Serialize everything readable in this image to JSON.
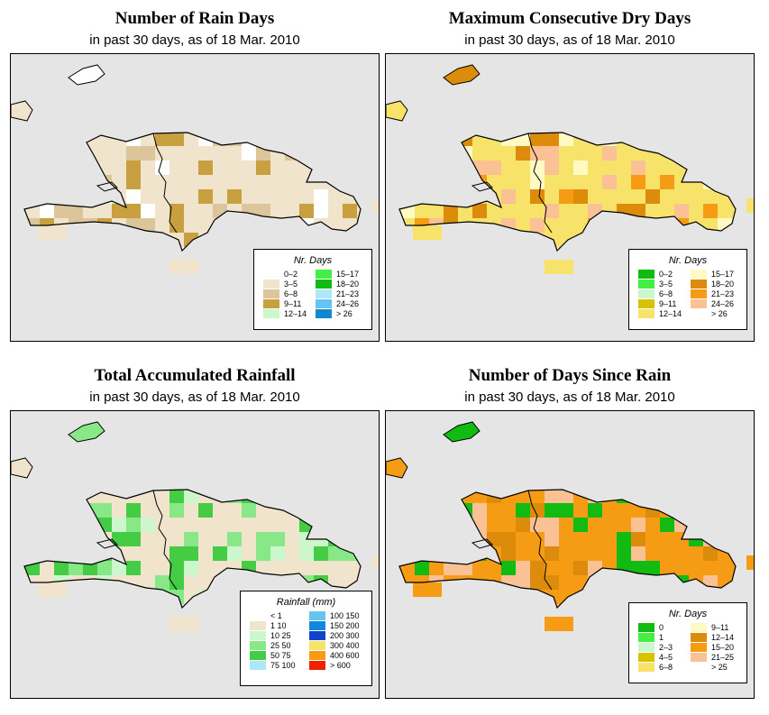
{
  "panels": [
    {
      "title": "Number of Rain Days",
      "subtitle": "in past 30 days, as of  18 Mar. 2010",
      "legend_title": "Nr. Days",
      "legend": [
        {
          "label": "0–2",
          "color": "#ffffff"
        },
        {
          "label": "3–5",
          "color": "#f1e4cc"
        },
        {
          "label": "6–8",
          "color": "#dcc59a"
        },
        {
          "label": "9–11",
          "color": "#c8a040"
        },
        {
          "label": "12–14",
          "color": "#ccf7cc"
        },
        {
          "label": "15–17",
          "color": "#44ee44"
        },
        {
          "label": "18–20",
          "color": "#11bb11"
        },
        {
          "label": "21–23",
          "color": "#aee8f8"
        },
        {
          "label": "24–26",
          "color": "#66c4f0"
        },
        {
          "label": "> 26",
          "color": "#1188cc"
        }
      ],
      "base_color": "#f1e4cc",
      "accent_colors": [
        "#ffffff",
        "#dcc59a",
        "#c8a040"
      ]
    },
    {
      "title": "Maximum Consecutive Dry Days",
      "subtitle": "in past 30 days, as of  18 Mar. 2010",
      "legend_title": "Nr. Days",
      "legend": [
        {
          "label": "0–2",
          "color": "#11bb11"
        },
        {
          "label": "3–5",
          "color": "#44ee44"
        },
        {
          "label": "6–8",
          "color": "#ccf7cc"
        },
        {
          "label": "9–11",
          "color": "#d8c200"
        },
        {
          "label": "12–14",
          "color": "#f7e36a"
        },
        {
          "label": "15–17",
          "color": "#fff9c4"
        },
        {
          "label": "18–20",
          "color": "#dd8b0a"
        },
        {
          "label": "21–23",
          "color": "#f59b14"
        },
        {
          "label": "24–26",
          "color": "#f9c194"
        },
        {
          "label": "> 26",
          "color": "#ffffff"
        }
      ],
      "base_color": "#f7e36a",
      "accent_colors": [
        "#dd8b0a",
        "#f59b14",
        "#f9c194",
        "#fff9c4"
      ]
    },
    {
      "title": "Total Accumulated Rainfall",
      "subtitle": "in past 30 days, as of  18 Mar. 2010",
      "legend_title": "Rainfall (mm)",
      "legend": [
        {
          "label": "< 1",
          "color": "#ffffff"
        },
        {
          "label": "1   10",
          "color": "#f1e4cc"
        },
        {
          "label": "10   25",
          "color": "#ccf7cc"
        },
        {
          "label": "25   50",
          "color": "#88e888"
        },
        {
          "label": "50   75",
          "color": "#44cc44"
        },
        {
          "label": "75  100",
          "color": "#aee8f8"
        },
        {
          "label": "100  150",
          "color": "#66c4f0"
        },
        {
          "label": "150  200",
          "color": "#1188dd"
        },
        {
          "label": "200  300",
          "color": "#1144cc"
        },
        {
          "label": "300  400",
          "color": "#f7e36a"
        },
        {
          "label": "400  600",
          "color": "#f59b14"
        },
        {
          "label": "> 600",
          "color": "#ee2200"
        }
      ],
      "base_color": "#f1e4cc",
      "accent_colors": [
        "#88e888",
        "#44cc44",
        "#ccf7cc"
      ]
    },
    {
      "title": "Number of Days Since Rain",
      "subtitle": "in past 30 days, as of  18 Mar. 2010",
      "legend_title": "Nr. Days",
      "legend": [
        {
          "label": "0",
          "color": "#11bb11"
        },
        {
          "label": "1",
          "color": "#44ee44"
        },
        {
          "label": "2–3",
          "color": "#ccf7cc"
        },
        {
          "label": "4–5",
          "color": "#d8c200"
        },
        {
          "label": "6–8",
          "color": "#f7e36a"
        },
        {
          "label": "9–11",
          "color": "#fff9c4"
        },
        {
          "label": "12–14",
          "color": "#dd8b0a"
        },
        {
          "label": "15–20",
          "color": "#f59b14"
        },
        {
          "label": "21–25",
          "color": "#f9c194"
        },
        {
          "label": "> 25",
          "color": "#ffffff"
        }
      ],
      "base_color": "#f59b14",
      "accent_colors": [
        "#11bb11",
        "#dd8b0a",
        "#f9c194"
      ]
    }
  ]
}
